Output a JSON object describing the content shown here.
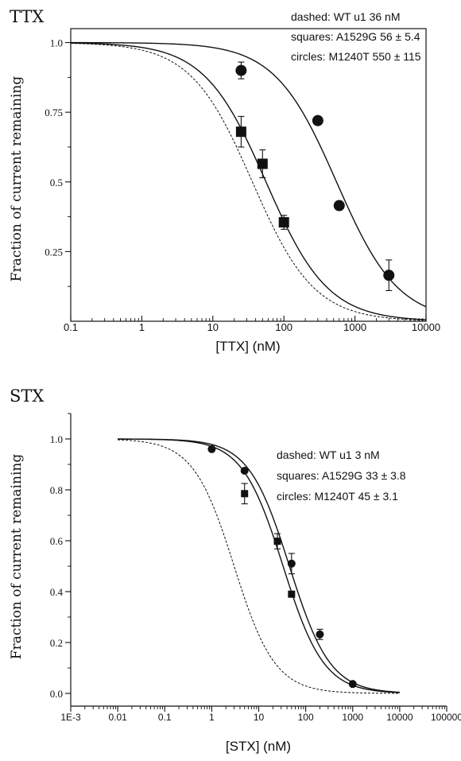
{
  "chart_data": [
    {
      "type": "scatter",
      "title": "TTX",
      "xlabel": "[TTX] (nM)",
      "ylabel": "Fraction of current remaining",
      "x_scale": "log",
      "xlim": [
        0.1,
        10000
      ],
      "ylim": [
        0,
        1.05
      ],
      "x_ticks": [
        0.1,
        1,
        10,
        100,
        1000,
        10000
      ],
      "x_tick_labels": [
        "0.1",
        "1",
        "10",
        "100",
        "1000",
        "10000"
      ],
      "y_ticks": [
        0.25,
        0.5,
        0.75,
        1.0
      ],
      "y_tick_labels": [
        "0.25",
        "0.5",
        "0.75",
        "1.0"
      ],
      "annotations": [
        "dashed: WT u1 36 nM",
        "squares: A1529G 56 ± 5.4",
        "circles: M1240T 550 ± 115"
      ],
      "series": [
        {
          "name": "dashed: WT u1 36 nM",
          "kind": "fit",
          "style": "dashed",
          "ic50": 36
        },
        {
          "name": "squares: A1529G 56 ± 5.4",
          "kind": "fit",
          "style": "solid",
          "ic50": 56
        },
        {
          "name": "circles: M1240T 550 ± 115",
          "kind": "fit",
          "style": "solid",
          "ic50": 550
        },
        {
          "name": "squares: A1529G 56 ± 5.4",
          "kind": "points",
          "marker": "square",
          "x": [
            25,
            50,
            100
          ],
          "y": [
            0.68,
            0.565,
            0.355
          ],
          "err": [
            0.055,
            0.05,
            0.025
          ]
        },
        {
          "name": "circles: M1240T 550 ± 115",
          "kind": "points",
          "marker": "circle",
          "x": [
            25,
            300,
            600,
            3000
          ],
          "y": [
            0.9,
            0.72,
            0.415,
            0.165
          ],
          "err": [
            0.03,
            0,
            0.015,
            0.055
          ]
        }
      ]
    },
    {
      "type": "scatter",
      "title": "STX",
      "xlabel": "[STX] (nM)",
      "ylabel": "Fraction of current remaining",
      "x_scale": "log",
      "xlim": [
        0.001,
        100000
      ],
      "ylim": [
        -0.05,
        1.1
      ],
      "x_ticks": [
        0.001,
        0.01,
        0.1,
        1,
        10,
        100,
        1000,
        10000,
        100000
      ],
      "x_tick_labels": [
        "1E-3",
        "0.01",
        "0.1",
        "1",
        "10",
        "100",
        "1000",
        "10000",
        "100000"
      ],
      "y_ticks": [
        0.0,
        0.2,
        0.4,
        0.6,
        0.8,
        1.0
      ],
      "y_tick_labels": [
        "0.0",
        "0.2",
        "0.4",
        "0.6",
        "0.8",
        "1.0"
      ],
      "annotations": [
        "dashed: WT u1 3 nM",
        "squares: A1529G 33 ± 3.8",
        "circles: M1240T 45 ± 3.1"
      ],
      "series": [
        {
          "name": "dashed: WT u1 3 nM",
          "kind": "fit",
          "style": "dashed",
          "ic50": 3
        },
        {
          "name": "squares: A1529G 33 ± 3.8",
          "kind": "fit",
          "style": "solid",
          "ic50": 33
        },
        {
          "name": "circles: M1240T 45 ± 3.1",
          "kind": "fit",
          "style": "solid",
          "ic50": 45
        },
        {
          "name": "squares: A1529G 33 ± 3.8",
          "kind": "points",
          "marker": "square",
          "x": [
            5,
            25,
            50
          ],
          "y": [
            0.785,
            0.598,
            0.39
          ],
          "err": [
            0.04,
            0.03,
            0
          ]
        },
        {
          "name": "circles: M1240T 45 ± 3.1",
          "kind": "points",
          "marker": "circle",
          "x": [
            1,
            5,
            50,
            200,
            1000
          ],
          "y": [
            0.96,
            0.875,
            0.51,
            0.232,
            0.037
          ],
          "err": [
            0,
            0,
            0.04,
            0.02,
            0
          ]
        }
      ]
    }
  ]
}
